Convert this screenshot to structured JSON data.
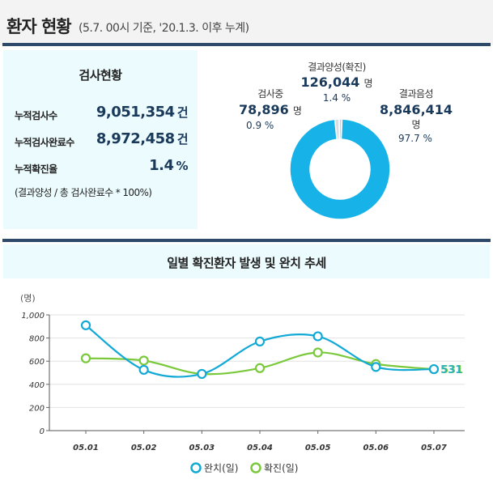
{
  "header": {
    "title": "환자 현황",
    "subtitle": "(5.7. 00시 기준, '20.1.3. 이후 누계)"
  },
  "test_status": {
    "title": "검사현황",
    "rows": [
      {
        "label": "누적검사수",
        "value": "9,051,354",
        "unit": "건"
      },
      {
        "label": "누적검사완료수",
        "value": "8,972,458",
        "unit": "건"
      },
      {
        "label": "누적확진율",
        "value": "1.4",
        "unit": "%"
      }
    ],
    "note": "(결과양성 / 총 검사완료수 * 100%)"
  },
  "donut": {
    "segments": [
      {
        "name": "결과양성(확진)",
        "value": "126,044",
        "unit": "명",
        "percent": "1.4 %",
        "share": 1.4,
        "color": "#d8dde2"
      },
      {
        "name": "검사중",
        "value": "78,896",
        "unit": "명",
        "percent": "0.9 %",
        "share": 0.9,
        "color": "#c9d2da"
      },
      {
        "name": "결과음성",
        "value": "8,846,414",
        "unit": "명",
        "percent": "97.7 %",
        "share": 97.7,
        "color": "#17b3e8"
      }
    ]
  },
  "chart_title": "일별 확진환자 발생 및 완치 추세",
  "chart_data": {
    "type": "line",
    "ylabel": "(명)",
    "categories": [
      "05.01",
      "05.02",
      "05.03",
      "05.04",
      "05.05",
      "05.06",
      "05.07"
    ],
    "ylim": [
      0,
      1000
    ],
    "yticks": [
      "0",
      "200",
      "400",
      "600",
      "800",
      "1,000"
    ],
    "grid": true,
    "legend": "bottom",
    "series": [
      {
        "name": "완치(일)",
        "color": "#13a9d6",
        "values": [
          910,
          525,
          490,
          770,
          815,
          550,
          531
        ]
      },
      {
        "name": "확진(일)",
        "color": "#79c93a",
        "values": [
          625,
          605,
          490,
          540,
          675,
          575,
          531
        ]
      }
    ],
    "end_label": "531"
  }
}
